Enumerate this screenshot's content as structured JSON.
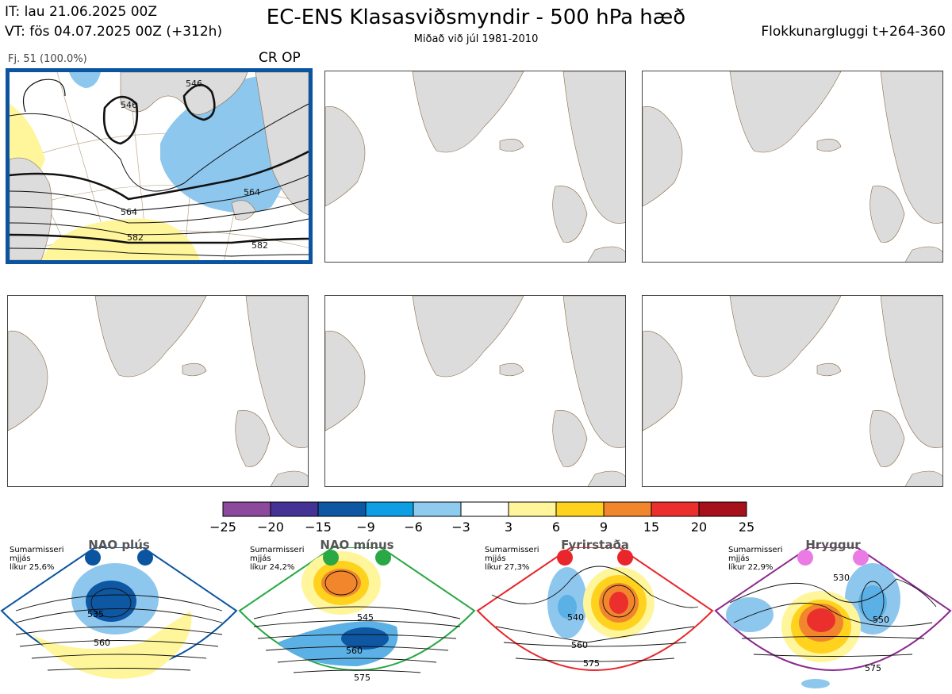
{
  "header": {
    "title": "EC-ENS Klasasviðsmyndir - 500 hPa hæð",
    "subtitle": "Miðað við júl 1981-2010",
    "it_line": "IT: lau 21.06.2025 00Z",
    "vt_line": "VT: fös 04.07.2025 00Z  (+312h)",
    "window_line": "Flokkunargluggi t+264-360"
  },
  "cluster_panel": {
    "member_label": "Fj. 51 (100.0%)",
    "regime_label": "CR OP",
    "contour_labels": [
      "546",
      "546",
      "564",
      "564",
      "582",
      "582"
    ],
    "anomaly_colors": {
      "positive": "#fff59a",
      "negative": "#8ec7ee",
      "negative_strong": "#5bb0e5"
    },
    "frame_color": "#0b55a0"
  },
  "empty_panels": 5,
  "colorbar": {
    "ticks": [
      "−25",
      "−20",
      "−15",
      "−9",
      "−6",
      "−3",
      "3",
      "6",
      "9",
      "15",
      "20",
      "25"
    ],
    "colors": [
      "#8d4a9c",
      "#443395",
      "#0d57a3",
      "#0d9ee3",
      "#8ecbee",
      "#ffffff",
      "#fff59a",
      "#ffd21e",
      "#f2862d",
      "#ea2f2c",
      "#a6111b"
    ]
  },
  "regimes": [
    {
      "name": "NAO plús",
      "season": "Sumarmisseri",
      "spread": "mjjás",
      "probability": "líkur 25,6%",
      "contour_labels": [
        "535",
        "560"
      ],
      "color": "#0b55a0",
      "dot_color": "#0b55a0"
    },
    {
      "name": "NAO mínus",
      "season": "Sumarmisseri",
      "spread": "mjjás",
      "probability": "líkur 24,2%",
      "contour_labels": [
        "545",
        "560",
        "575"
      ],
      "color": "#2aa845",
      "dot_color": "#2aa845"
    },
    {
      "name": "Fyrirstaða",
      "season": "Sumarmisseri",
      "spread": "mjjás",
      "probability": "líkur 27,3%",
      "contour_labels": [
        "540",
        "560",
        "575"
      ],
      "color": "#e8262b",
      "dot_color": "#e8262b"
    },
    {
      "name": "Hryggur",
      "season": "Sumarmisseri",
      "spread": "mjjás",
      "probability": "líkur 22,9%",
      "contour_labels": [
        "530",
        "550",
        "575"
      ],
      "color": "#8b2a8f",
      "dot_color": "#ea7ae4"
    }
  ]
}
